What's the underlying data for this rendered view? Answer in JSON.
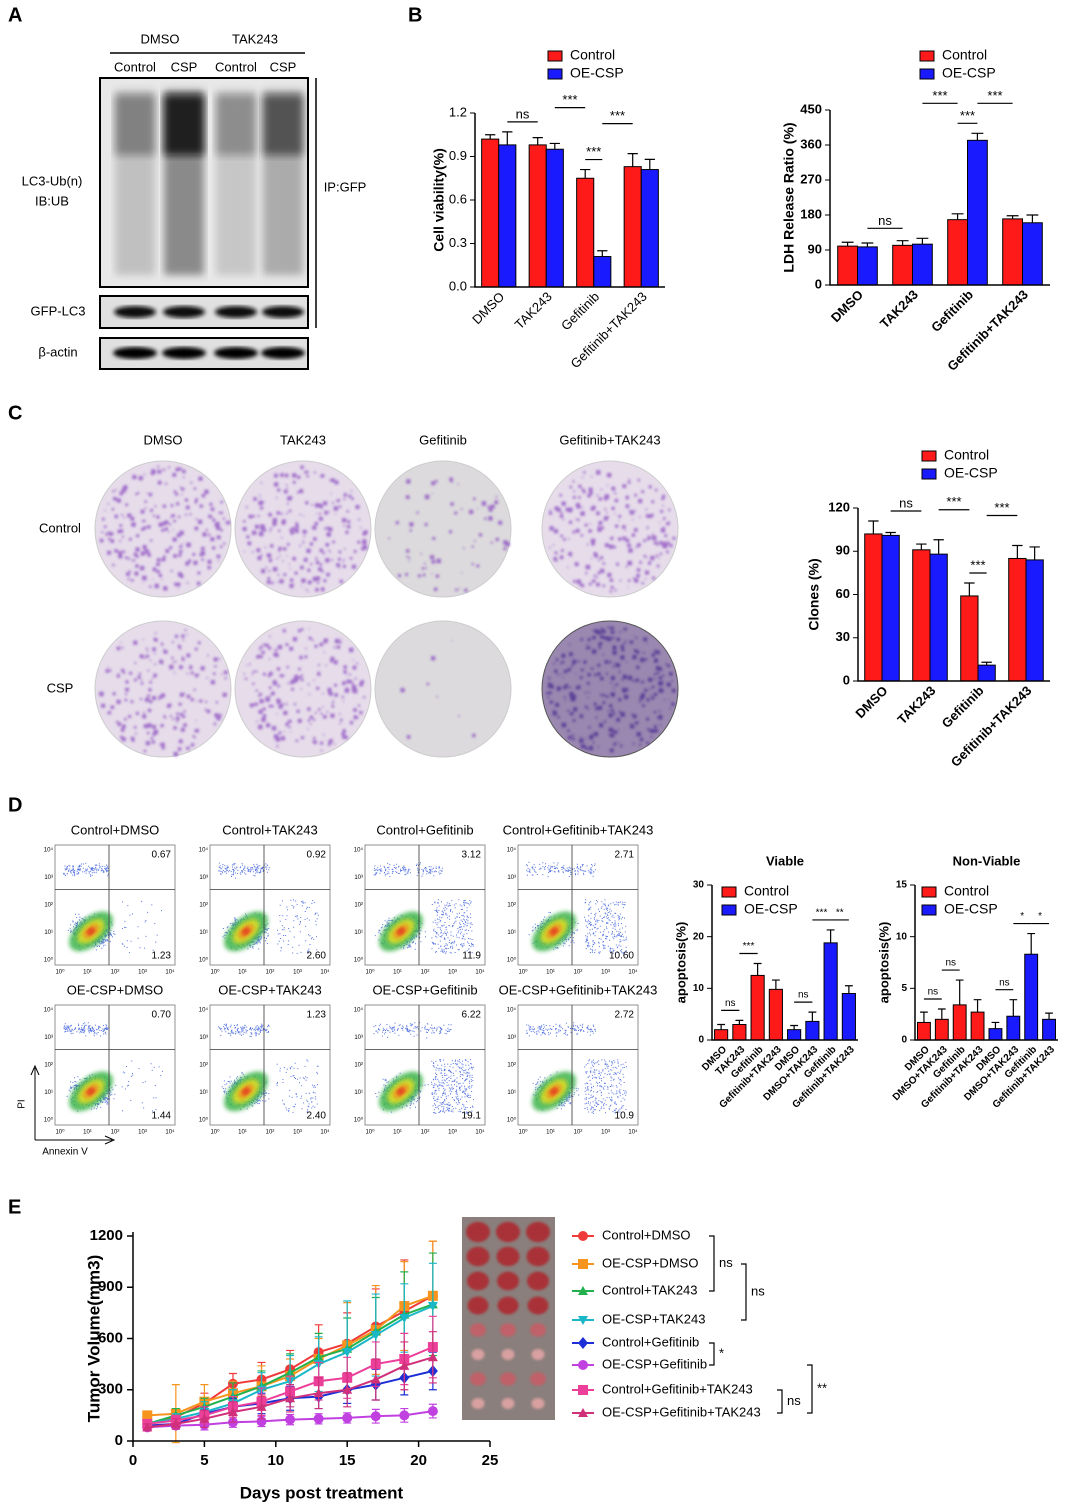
{
  "figure": {
    "panels": [
      "A",
      "B",
      "C",
      "D",
      "E"
    ],
    "blot": {
      "groups": [
        "DMSO",
        "TAK243"
      ],
      "lanes": [
        "Control",
        "CSP",
        "Control",
        "CSP"
      ],
      "labels": [
        "LC3-Ub(n)",
        "IB:UB",
        "GFP-LC3",
        "β-actin"
      ],
      "ip": "IP:GFP"
    },
    "colony": {
      "columns": [
        "DMSO",
        "TAK243",
        "Gefitinib",
        "Gefitinib+TAK243"
      ],
      "rows": [
        "Control",
        "CSP"
      ]
    },
    "flow": {
      "plots": [
        {
          "title": "Control+DMSO",
          "upper_right": "0.67",
          "lower_right": "1.23"
        },
        {
          "title": "Control+TAK243",
          "upper_right": "0.92",
          "lower_right": "2.60"
        },
        {
          "title": "Control+Gefitinib",
          "upper_right": "3.12",
          "lower_right": "11.9"
        },
        {
          "title": "Control+Gefitinib+TAK243",
          "upper_right": "2.71",
          "lower_right": "10.60"
        },
        {
          "title": "OE-CSP+DMSO",
          "upper_right": "0.70",
          "lower_right": "1.44"
        },
        {
          "title": "OE-CSP+TAK243",
          "upper_right": "1.23",
          "lower_right": "2.40"
        },
        {
          "title": "OE-CSP+Gefitinib",
          "upper_right": "6.22",
          "lower_right": "19.1"
        },
        {
          "title": "OE-CSP+Gefitinib+TAK243",
          "upper_right": "2.72",
          "lower_right": "10.9"
        }
      ],
      "ticks": [
        "10⁰",
        "10¹",
        "10²",
        "10³",
        "10⁴"
      ],
      "y_label": "PI",
      "x_label": "Annexin V"
    }
  },
  "chart_data": [
    {
      "type": "bar",
      "ylabel": "Cell viability(%)",
      "categories": [
        "DMSO",
        "TAK243",
        "Gefitinib",
        "Gefitinib+TAK243"
      ],
      "series": [
        {
          "name": "Control",
          "color": "#ff1a1a",
          "values": [
            1.02,
            0.98,
            0.75,
            0.83
          ],
          "errors": [
            0.03,
            0.05,
            0.06,
            0.09
          ]
        },
        {
          "name": "OE-CSP",
          "color": "#1a1aff",
          "values": [
            0.98,
            0.95,
            0.21,
            0.81
          ],
          "errors": [
            0.09,
            0.04,
            0.04,
            0.07
          ]
        }
      ],
      "ylim": [
        0,
        1.2
      ],
      "yticks": [
        {
          "value": 0,
          "label": "0.0"
        },
        0.3,
        0.6,
        0.9,
        1.2
      ],
      "annotations": [
        {
          "label": "ns",
          "between": [
            0,
            1
          ]
        },
        {
          "label": "***",
          "between": [
            1,
            2
          ]
        },
        {
          "label": "***",
          "between": [
            2,
            3
          ]
        },
        {
          "label": "***",
          "between": [
            2,
            2
          ]
        }
      ]
    },
    {
      "type": "bar",
      "ylabel": "LDH Release Ratio (%)",
      "categories": [
        "DMSO",
        "TAK243",
        "Gefitinib",
        "Gefitinib+TAK243"
      ],
      "series": [
        {
          "name": "Control",
          "color": "#ff1a1a",
          "values": [
            100,
            102,
            168,
            170
          ],
          "errors": [
            10,
            12,
            15,
            8
          ]
        },
        {
          "name": "OE-CSP",
          "color": "#1a1aff",
          "values": [
            98,
            105,
            372,
            160
          ],
          "errors": [
            10,
            15,
            18,
            20
          ]
        }
      ],
      "ylim": [
        0,
        450
      ],
      "yticks": [
        0,
        90,
        180,
        270,
        360,
        450
      ],
      "annotations": [
        {
          "label": "ns",
          "between": [
            0,
            1
          ]
        },
        {
          "label": "***",
          "between": [
            1,
            2
          ]
        },
        {
          "label": "***",
          "between": [
            2,
            3
          ]
        },
        {
          "label": "***",
          "between": [
            2,
            2
          ]
        }
      ]
    },
    {
      "type": "bar",
      "ylabel": "Clones (%)",
      "categories": [
        "DMSO",
        "TAK243",
        "Gefitinib",
        "Gefitinib+TAK243"
      ],
      "series": [
        {
          "name": "Control",
          "color": "#ff1a1a",
          "values": [
            102,
            91,
            59,
            85
          ],
          "errors": [
            9,
            4,
            9,
            9
          ]
        },
        {
          "name": "OE-CSP",
          "color": "#1a1aff",
          "values": [
            101,
            88,
            11,
            84
          ],
          "errors": [
            2,
            10,
            2,
            9
          ]
        }
      ],
      "ylim": [
        0,
        120
      ],
      "yticks": [
        0,
        30,
        60,
        90,
        120
      ],
      "annotations": [
        {
          "label": "ns",
          "between": [
            0,
            1
          ]
        },
        {
          "label": "***",
          "between": [
            1,
            2
          ]
        },
        {
          "label": "***",
          "between": [
            2,
            3
          ]
        },
        {
          "label": "***",
          "between": [
            2,
            2
          ]
        }
      ]
    },
    {
      "type": "bar",
      "title": "Viable",
      "ylabel": "apoptosis(%)",
      "categories": [
        "DMSO",
        "TAK243",
        "Gefitinib",
        "Gefitinib+TAK243",
        "DMSO",
        "DMSO+TAK243",
        "Gefitinib",
        "Gefitinib+TAK243"
      ],
      "series": [
        {
          "name": "Control",
          "color": "#ff1a1a",
          "values": [
            2,
            3,
            12.5,
            9.8,
            null,
            null,
            null,
            null
          ],
          "errors": [
            1,
            0.8,
            2.3,
            1.8,
            null,
            null,
            null,
            null
          ]
        },
        {
          "name": "OE-CSP",
          "color": "#1a1aff",
          "values": [
            null,
            null,
            null,
            null,
            2,
            3.6,
            18.8,
            9
          ],
          "errors": [
            null,
            null,
            null,
            null,
            0.8,
            1.8,
            2.5,
            1.5
          ]
        }
      ],
      "ylim": [
        0,
        30
      ],
      "yticks": [
        0,
        10,
        20,
        30
      ],
      "annotations": [
        {
          "label": "ns",
          "between": [
            0,
            1
          ]
        },
        {
          "label": "***",
          "between": [
            1,
            2
          ]
        },
        {
          "label": "ns",
          "between": [
            4,
            5
          ]
        },
        {
          "label": "***",
          "between": [
            5,
            6
          ]
        },
        {
          "label": "**",
          "between": [
            6,
            7
          ]
        }
      ]
    },
    {
      "type": "bar",
      "title": "Non-Viable",
      "ylabel": "apoptosis(%)",
      "categories": [
        "DMSO",
        "DMSO+TAK243",
        "Gefitinib",
        "Gefitinib+TAK243",
        "DMSO",
        "DMSO+TAK243",
        "Gefitinib",
        "Gefitinib+TAK243"
      ],
      "series": [
        {
          "name": "Control",
          "color": "#ff1a1a",
          "values": [
            1.7,
            2,
            3.4,
            2.7,
            null,
            null,
            null,
            null
          ],
          "errors": [
            1,
            1,
            2.4,
            1.2,
            null,
            null,
            null,
            null
          ]
        },
        {
          "name": "OE-CSP",
          "color": "#1a1aff",
          "values": [
            null,
            null,
            null,
            null,
            1.1,
            2.3,
            8.3,
            2
          ],
          "errors": [
            null,
            null,
            null,
            null,
            0.6,
            1.6,
            2,
            0.6
          ]
        }
      ],
      "ylim": [
        0,
        15
      ],
      "yticks": [
        0,
        5,
        10,
        15
      ],
      "annotations": [
        {
          "label": "ns",
          "between": [
            0,
            1
          ]
        },
        {
          "label": "ns",
          "between": [
            1,
            2
          ]
        },
        {
          "label": "ns",
          "between": [
            4,
            5
          ]
        },
        {
          "label": "*",
          "between": [
            5,
            6
          ]
        },
        {
          "label": "*",
          "between": [
            6,
            7
          ]
        }
      ]
    },
    {
      "type": "line",
      "xlabel": "Days post treatment",
      "ylabel": "Tumor Volume(mm3)",
      "x": [
        1,
        3,
        5,
        7,
        9,
        11,
        13,
        15,
        17,
        19,
        21
      ],
      "xlim": [
        0,
        25
      ],
      "xticks": [
        0,
        5,
        10,
        15,
        20,
        25
      ],
      "ylim": [
        0,
        1200
      ],
      "yticks": [
        0,
        300,
        600,
        900,
        1200
      ],
      "series": [
        {
          "name": "Control+DMSO",
          "color": "#f03a3a",
          "marker": "circle",
          "values": [
            100,
            140,
            220,
            335,
            360,
            420,
            520,
            570,
            670,
            760,
            850
          ],
          "errors": [
            20,
            30,
            60,
            60,
            100,
            110,
            160,
            180,
            220,
            300,
            320
          ]
        },
        {
          "name": "OE-CSP+DMSO",
          "color": "#f7941d",
          "marker": "square",
          "values": [
            150,
            160,
            230,
            280,
            320,
            380,
            480,
            560,
            650,
            790,
            850
          ],
          "errors": [
            20,
            170,
            100,
            70,
            120,
            100,
            120,
            250,
            260,
            260,
            320
          ]
        },
        {
          "name": "Control+TAK243",
          "color": "#22b14c",
          "marker": "triangle",
          "values": [
            100,
            150,
            200,
            260,
            320,
            400,
            490,
            540,
            640,
            740,
            800
          ],
          "errors": [
            20,
            40,
            50,
            80,
            90,
            110,
            140,
            180,
            200,
            250,
            300
          ]
        },
        {
          "name": "OE-CSP+TAK243",
          "color": "#1ab7c8",
          "marker": "triangle-down",
          "values": [
            100,
            130,
            170,
            220,
            300,
            350,
            450,
            520,
            620,
            720,
            790
          ],
          "errors": [
            20,
            30,
            60,
            80,
            100,
            150,
            160,
            300,
            240,
            200,
            250
          ]
        },
        {
          "name": "Control+Gefitinib",
          "color": "#1d2fd6",
          "marker": "diamond",
          "values": [
            90,
            100,
            160,
            200,
            220,
            250,
            260,
            300,
            330,
            370,
            410
          ],
          "errors": [
            20,
            30,
            40,
            50,
            60,
            70,
            70,
            80,
            90,
            100,
            110
          ]
        },
        {
          "name": "OE-CSP+Gefitinib",
          "color": "#c040e0",
          "marker": "circle",
          "values": [
            80,
            90,
            95,
            110,
            115,
            125,
            130,
            135,
            145,
            150,
            175
          ],
          "errors": [
            20,
            20,
            30,
            30,
            30,
            30,
            30,
            30,
            40,
            40,
            40
          ]
        },
        {
          "name": "Control+Gefitinib+TAK243",
          "color": "#ec3f9a",
          "marker": "square",
          "values": [
            100,
            120,
            150,
            200,
            230,
            290,
            350,
            370,
            450,
            480,
            550
          ],
          "errors": [
            20,
            30,
            50,
            60,
            80,
            90,
            110,
            120,
            130,
            150,
            180
          ]
        },
        {
          "name": "OE-CSP+Gefitinib+TAK243",
          "color": "#d0307a",
          "marker": "triangle",
          "values": [
            80,
            100,
            130,
            170,
            200,
            250,
            280,
            300,
            360,
            440,
            490
          ],
          "errors": [
            20,
            30,
            50,
            60,
            70,
            80,
            90,
            100,
            120,
            140,
            150
          ]
        }
      ],
      "legend_annotations": [
        {
          "label": "ns",
          "series": [
            0,
            2
          ]
        },
        {
          "label": "ns",
          "series": [
            1,
            3
          ]
        },
        {
          "label": "*",
          "series": [
            4,
            5
          ]
        },
        {
          "label": "ns",
          "series": [
            6,
            7
          ]
        },
        {
          "label": "**",
          "series": [
            5,
            7
          ]
        }
      ]
    }
  ]
}
